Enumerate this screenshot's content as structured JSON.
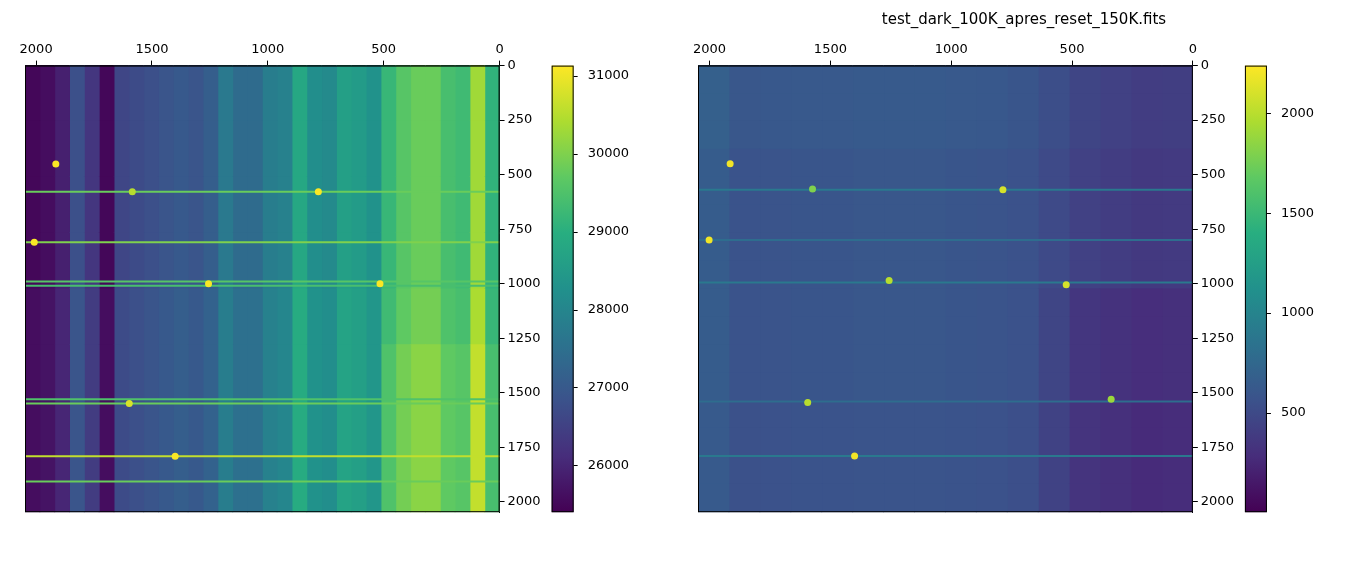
{
  "chart_data": [
    {
      "type": "heatmap",
      "xlim": [
        2048,
        0
      ],
      "xticks": [
        2000,
        1500,
        1000,
        500,
        0
      ],
      "ylim": [
        2048,
        0
      ],
      "yticks": [
        0,
        250,
        500,
        750,
        1000,
        1250,
        1500,
        1750,
        2000
      ],
      "grid": false,
      "cells": [
        [
          29100,
          30300,
          29300,
          29400,
          29800,
          29800,
          29600,
          29200,
          28300,
          28500,
          28600,
          28100,
          28200,
          28800,
          27900,
          27800,
          27400,
          27400,
          27700,
          27100,
          26900,
          27000,
          26900,
          26800,
          26700,
          26600,
          25500,
          26300,
          26800,
          25900,
          25600,
          25500
        ],
        [
          29100,
          30300,
          29300,
          29400,
          29800,
          29800,
          29600,
          29200,
          28300,
          28500,
          28600,
          28100,
          28200,
          28800,
          27900,
          27800,
          27400,
          27400,
          27700,
          27100,
          26900,
          27000,
          26900,
          26800,
          26700,
          26600,
          25500,
          26300,
          26800,
          25900,
          25600,
          25500
        ],
        [
          29100,
          30300,
          29300,
          29400,
          29800,
          29800,
          29600,
          29200,
          28300,
          28500,
          28600,
          28100,
          28200,
          28800,
          27900,
          27800,
          27400,
          27400,
          27700,
          27100,
          26900,
          27000,
          26900,
          26800,
          26700,
          26600,
          25500,
          26300,
          26800,
          25900,
          25600,
          25500
        ],
        [
          29100,
          30300,
          29300,
          29400,
          29800,
          29800,
          29600,
          29200,
          28300,
          28500,
          28600,
          28100,
          28200,
          28800,
          27900,
          27800,
          27400,
          27400,
          27700,
          27100,
          26900,
          27000,
          26900,
          26800,
          26700,
          26600,
          25500,
          26300,
          26800,
          25900,
          25600,
          25500
        ],
        [
          29200,
          30400,
          29400,
          29500,
          29900,
          29900,
          29700,
          29300,
          28400,
          28600,
          28700,
          28200,
          28300,
          28900,
          28000,
          27900,
          27500,
          27500,
          27800,
          27200,
          27000,
          27100,
          27000,
          26900,
          26800,
          26700,
          25600,
          26400,
          26900,
          26000,
          25700,
          25600
        ],
        [
          29400,
          30600,
          29600,
          29700,
          30100,
          30100,
          29900,
          29500,
          28400,
          28600,
          28700,
          28200,
          28300,
          28900,
          28000,
          27900,
          27500,
          27500,
          27800,
          27200,
          27000,
          27100,
          27000,
          26900,
          26800,
          26700,
          25600,
          26400,
          26900,
          26000,
          25700,
          25600
        ],
        [
          29400,
          30600,
          29600,
          29700,
          30100,
          30100,
          29900,
          29500,
          28400,
          28600,
          28700,
          28200,
          28300,
          28900,
          28000,
          27900,
          27500,
          27500,
          27800,
          27200,
          27000,
          27100,
          27000,
          26900,
          26800,
          26700,
          25600,
          26400,
          26900,
          26000,
          25700,
          25600
        ],
        [
          29400,
          30600,
          29600,
          29700,
          30100,
          30100,
          29900,
          29500,
          28400,
          28600,
          28700,
          28200,
          28300,
          28900,
          28000,
          27900,
          27500,
          27500,
          27800,
          27200,
          27000,
          27100,
          27000,
          26900,
          26800,
          26700,
          25600,
          26400,
          26900,
          26000,
          25700,
          25600
        ]
      ],
      "colorbar": {
        "lim": [
          25400,
          31130
        ],
        "ticks": [
          26000,
          27000,
          28000,
          29000,
          30000,
          31000
        ]
      },
      "hot_rows": {
        "y": [
          578,
          810,
          990,
          1010,
          1530,
          1549,
          1791,
          1907
        ],
        "values": [
          29800,
          30000,
          29600,
          29400,
          29500,
          29800,
          30600,
          29800
        ]
      },
      "hot_pixels": {
        "x": [
          1915,
          1585,
          782,
          2008,
          1256,
          516,
          1598,
          1400
        ],
        "y": [
          451,
          578,
          578,
          810,
          1000,
          1000,
          1549,
          1791
        ],
        "values": [
          31100,
          30500,
          31100,
          31100,
          31100,
          31100,
          30800,
          31100
        ]
      }
    },
    {
      "type": "heatmap",
      "title": "test_dark_100K_apres_reset_150K.fits",
      "xlim": [
        2048,
        0
      ],
      "xticks": [
        2000,
        1500,
        1000,
        500,
        0
      ],
      "ylim": [
        2048,
        0
      ],
      "yticks": [
        0,
        250,
        500,
        750,
        1000,
        1250,
        1500,
        1750,
        2000
      ],
      "grid": false,
      "cells": [
        [
          410,
          400,
          430,
          460,
          530,
          590,
          610,
          620,
          630,
          630,
          630,
          620,
          620,
          610,
          600,
          680
        ],
        [
          410,
          400,
          430,
          460,
          530,
          590,
          610,
          620,
          630,
          630,
          630,
          620,
          620,
          610,
          600,
          680
        ],
        [
          410,
          400,
          430,
          460,
          530,
          590,
          610,
          620,
          630,
          630,
          630,
          620,
          620,
          610,
          600,
          680
        ],
        [
          380,
          370,
          400,
          430,
          500,
          560,
          580,
          590,
          600,
          600,
          600,
          590,
          590,
          580,
          570,
          650
        ],
        [
          380,
          370,
          400,
          430,
          500,
          560,
          580,
          590,
          600,
          600,
          600,
          590,
          590,
          580,
          570,
          650
        ],
        [
          380,
          370,
          400,
          430,
          500,
          560,
          580,
          590,
          600,
          600,
          600,
          590,
          590,
          580,
          570,
          650
        ],
        [
          380,
          370,
          400,
          430,
          500,
          560,
          580,
          590,
          600,
          600,
          600,
          590,
          590,
          580,
          570,
          650
        ],
        [
          380,
          370,
          400,
          430,
          500,
          560,
          580,
          590,
          600,
          600,
          600,
          590,
          590,
          580,
          570,
          650
        ],
        [
          300,
          290,
          320,
          350,
          460,
          560,
          580,
          590,
          600,
          600,
          600,
          590,
          590,
          580,
          570,
          650
        ],
        [
          300,
          290,
          320,
          350,
          460,
          560,
          580,
          590,
          600,
          600,
          600,
          590,
          590,
          580,
          570,
          650
        ],
        [
          300,
          290,
          320,
          350,
          460,
          560,
          580,
          590,
          600,
          600,
          600,
          590,
          590,
          580,
          570,
          650
        ],
        [
          300,
          290,
          320,
          350,
          460,
          560,
          580,
          590,
          600,
          600,
          600,
          590,
          590,
          580,
          570,
          650
        ],
        [
          280,
          270,
          300,
          330,
          440,
          540,
          560,
          570,
          580,
          580,
          580,
          570,
          570,
          560,
          550,
          630
        ],
        [
          280,
          270,
          300,
          330,
          440,
          540,
          560,
          570,
          580,
          580,
          580,
          570,
          570,
          560,
          550,
          630
        ],
        [
          280,
          270,
          300,
          330,
          440,
          540,
          560,
          570,
          580,
          580,
          580,
          570,
          570,
          560,
          550,
          630
        ],
        [
          280,
          270,
          300,
          330,
          440,
          540,
          560,
          570,
          580,
          580,
          580,
          570,
          570,
          560,
          550,
          630
        ]
      ],
      "colorbar": {
        "lim": [
          0,
          2240
        ],
        "ticks": [
          500,
          1000,
          1500,
          2000
        ]
      },
      "hot_rows": {
        "y": [
          569,
          800,
          995,
          1540,
          1790
        ],
        "values": [
          900,
          800,
          900,
          800,
          900
        ]
      },
      "hot_pixels": {
        "x": [
          1915,
          1574,
          786,
          2002,
          1257,
          524,
          1594,
          338,
          1400
        ],
        "y": [
          450,
          566,
          569,
          800,
          986,
          1005,
          1545,
          1530,
          1790
        ],
        "values": [
          2200,
          1800,
          2100,
          2200,
          2000,
          2100,
          2000,
          1900,
          2200
        ]
      }
    }
  ]
}
